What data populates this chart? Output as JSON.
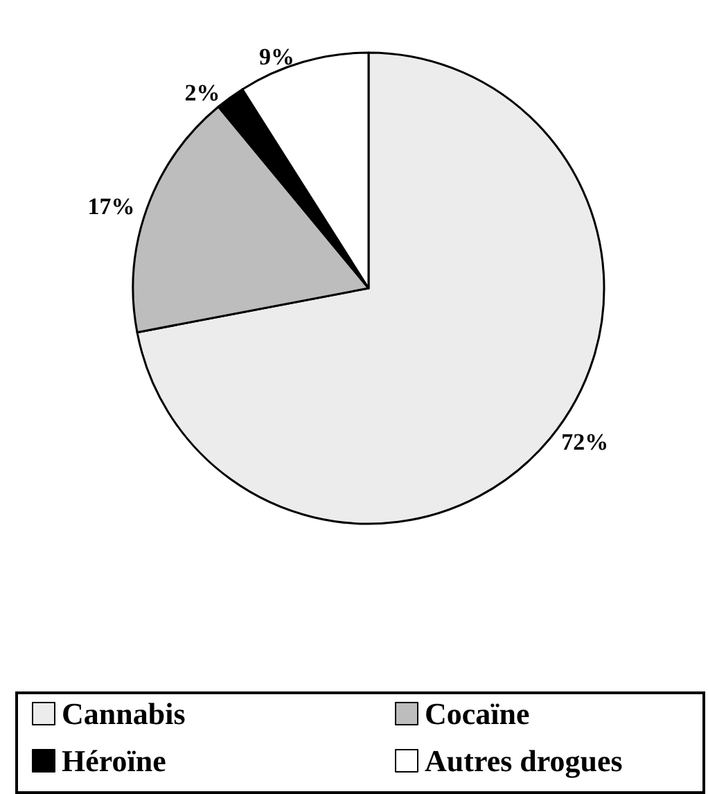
{
  "chart_data": {
    "type": "pie",
    "categories": [
      "Cannabis",
      "Cocaïne",
      "Héroïne",
      "Autres drogues"
    ],
    "values": [
      72,
      17,
      2,
      9
    ],
    "colors": [
      "#ececec",
      "#bdbdbd",
      "#000000",
      "#ffffff"
    ],
    "value_labels": [
      "72%",
      "17%",
      "2%",
      "9%"
    ],
    "legend": "bottom"
  }
}
